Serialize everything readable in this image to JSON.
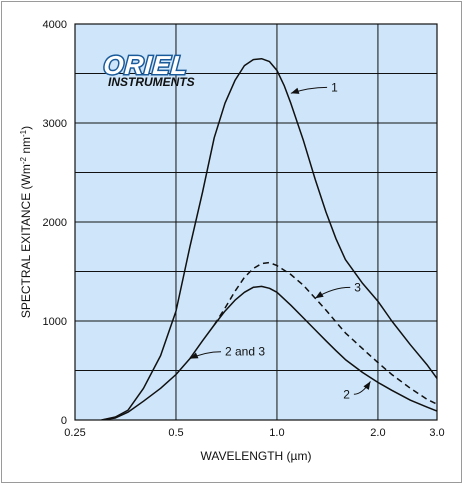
{
  "chart_data": {
    "type": "line",
    "xlabel": "WAVELENGTH (µm)",
    "ylabel": "SPECTRAL EXITANCE (Wm⁻² nm⁻¹)",
    "xscale": "log",
    "xlim": [
      0.25,
      3.0
    ],
    "ylim": [
      0,
      4000
    ],
    "xticks": [
      0.25,
      0.5,
      1.0,
      2.0,
      3.0
    ],
    "xtick_labels": [
      "0.25",
      "0.5",
      "1.0",
      "2.0",
      "3.0"
    ],
    "yticks": [
      0,
      1000,
      2000,
      3000,
      4000
    ],
    "ytick_labels": [
      "0",
      "1000",
      "2000",
      "3000",
      "4000"
    ],
    "grid": true,
    "background": "#cfe6fa",
    "series": [
      {
        "id": "1",
        "style": "solid",
        "x": [
          0.3,
          0.33,
          0.36,
          0.4,
          0.45,
          0.5,
          0.55,
          0.6,
          0.65,
          0.7,
          0.75,
          0.8,
          0.85,
          0.9,
          0.95,
          1.0,
          1.05,
          1.1,
          1.2,
          1.3,
          1.4,
          1.5,
          1.6,
          1.8,
          2.0,
          2.2,
          2.5,
          2.8,
          3.0
        ],
        "y": [
          0,
          30,
          100,
          320,
          650,
          1100,
          1750,
          2300,
          2850,
          3200,
          3430,
          3580,
          3640,
          3650,
          3620,
          3530,
          3380,
          3200,
          2820,
          2430,
          2100,
          1830,
          1620,
          1380,
          1200,
          1000,
          760,
          560,
          420
        ]
      },
      {
        "id": "2",
        "style": "solid",
        "x": [
          0.3,
          0.33,
          0.36,
          0.4,
          0.45,
          0.5,
          0.55,
          0.6,
          0.65,
          0.7,
          0.75,
          0.8,
          0.85,
          0.9,
          0.95,
          1.0,
          1.1,
          1.2,
          1.3,
          1.4,
          1.5,
          1.6,
          1.8,
          2.0,
          2.2,
          2.5,
          2.8,
          3.0
        ],
        "y": [
          0,
          20,
          80,
          190,
          320,
          460,
          620,
          800,
          960,
          1100,
          1210,
          1290,
          1340,
          1350,
          1330,
          1290,
          1160,
          1030,
          910,
          800,
          700,
          610,
          480,
          380,
          300,
          200,
          130,
          90
        ]
      },
      {
        "id": "3",
        "style": "dashed",
        "x": [
          0.65,
          0.7,
          0.75,
          0.8,
          0.85,
          0.9,
          0.95,
          1.0,
          1.1,
          1.2,
          1.3,
          1.4,
          1.5,
          1.6,
          1.8,
          2.0,
          2.2,
          2.5,
          2.8,
          3.0
        ],
        "y": [
          960,
          1130,
          1300,
          1440,
          1530,
          1580,
          1590,
          1560,
          1470,
          1360,
          1230,
          1110,
          990,
          880,
          720,
          580,
          460,
          320,
          210,
          160
        ]
      }
    ],
    "annotations": [
      {
        "text": "1",
        "at": [
          1.1,
          3300
        ],
        "label": [
          1.45,
          3360
        ]
      },
      {
        "text": "2 and 3",
        "at": [
          0.55,
          620
        ],
        "label": [
          0.7,
          690
        ]
      },
      {
        "text": "3",
        "at": [
          1.3,
          1230
        ],
        "label": [
          1.7,
          1340
        ]
      },
      {
        "text": "2",
        "at": [
          1.9,
          390
        ],
        "label": [
          1.65,
          260
        ]
      }
    ]
  },
  "logo": {
    "top": "ORIEL",
    "bottom": "INSTRUMENTS"
  }
}
